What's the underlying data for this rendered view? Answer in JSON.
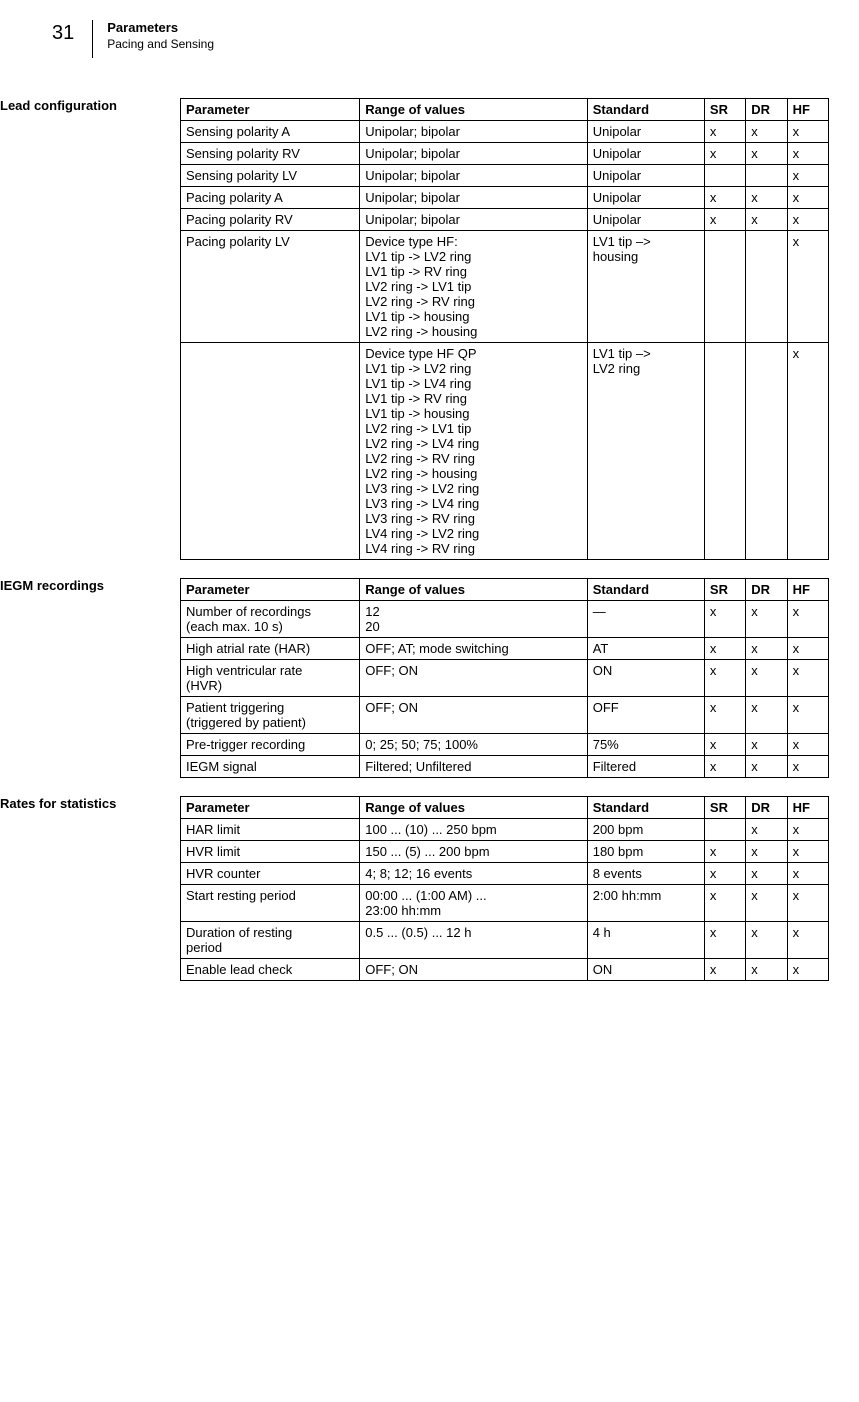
{
  "page": {
    "number": "31",
    "title": "Parameters",
    "subtitle": "Pacing and Sensing"
  },
  "headers": {
    "parameter": "Parameter",
    "range": "Range of values",
    "standard": "Standard",
    "sr": "SR",
    "dr": "DR",
    "hf": "HF"
  },
  "sections": {
    "lead": {
      "label": "Lead configuration",
      "rows": [
        {
          "param": "Sensing polarity A",
          "range": "Unipolar; bipolar",
          "std": "Unipolar",
          "sr": "x",
          "dr": "x",
          "hf": "x"
        },
        {
          "param": "Sensing polarity RV",
          "range": "Unipolar; bipolar",
          "std": "Unipolar",
          "sr": "x",
          "dr": "x",
          "hf": "x"
        },
        {
          "param": "Sensing polarity LV",
          "range": "Unipolar; bipolar",
          "std": "Unipolar",
          "sr": "",
          "dr": "",
          "hf": "x"
        },
        {
          "param": "Pacing polarity A",
          "range": "Unipolar; bipolar",
          "std": "Unipolar",
          "sr": "x",
          "dr": "x",
          "hf": "x"
        },
        {
          "param": "Pacing polarity RV",
          "range": "Unipolar; bipolar",
          "std": "Unipolar",
          "sr": "x",
          "dr": "x",
          "hf": "x"
        },
        {
          "param": "Pacing polarity LV",
          "range_lines": [
            "Device type HF:",
            "LV1 tip -> LV2 ring",
            "LV1 tip -> RV ring",
            "LV2 ring -> LV1 tip",
            "LV2 ring -> RV ring",
            "LV1 tip -> housing",
            "LV2 ring -> housing"
          ],
          "std_lines": [
            "LV1 tip –>",
            "housing"
          ],
          "sr": "",
          "dr": "",
          "hf": "x"
        },
        {
          "param": "",
          "range_lines": [
            "Device type HF QP",
            "LV1 tip -> LV2 ring",
            "LV1 tip -> LV4 ring",
            "LV1 tip -> RV ring",
            "LV1 tip -> housing",
            "LV2 ring -> LV1 tip",
            "LV2 ring -> LV4 ring",
            "LV2 ring -> RV ring",
            "LV2 ring -> housing",
            "LV3 ring -> LV2 ring",
            "LV3 ring -> LV4 ring",
            "LV3 ring -> RV ring",
            "LV4 ring -> LV2 ring",
            "LV4 ring -> RV ring"
          ],
          "std_lines": [
            "LV1 tip –>",
            "LV2 ring"
          ],
          "sr": "",
          "dr": "",
          "hf": "x"
        }
      ]
    },
    "iegm": {
      "label": "IEGM recordings",
      "rows": [
        {
          "param_lines": [
            "Number of recordings",
            "(each max. 10 s)"
          ],
          "range_lines": [
            "12",
            "20"
          ],
          "std": "—",
          "sr": "x",
          "dr": "x",
          "hf": "x"
        },
        {
          "param": "High atrial rate (HAR)",
          "range": "OFF; AT; mode switching",
          "std": "AT",
          "sr": "x",
          "dr": "x",
          "hf": "x"
        },
        {
          "param_lines": [
            "High ventricular rate",
            "(HVR)"
          ],
          "range": "OFF; ON",
          "std": "ON",
          "sr": "x",
          "dr": "x",
          "hf": "x"
        },
        {
          "param_lines": [
            "Patient triggering",
            "(triggered by patient)"
          ],
          "range": "OFF; ON",
          "std": "OFF",
          "sr": "x",
          "dr": "x",
          "hf": "x"
        },
        {
          "param": "Pre-trigger recording",
          "range": "0; 25; 50; 75; 100%",
          "std": "75%",
          "sr": "x",
          "dr": "x",
          "hf": "x"
        },
        {
          "param": "IEGM signal",
          "range": "Filtered; Unfiltered",
          "std": "Filtered",
          "sr": "x",
          "dr": "x",
          "hf": "x"
        }
      ]
    },
    "rates": {
      "label": "Rates for statistics",
      "rows": [
        {
          "param": "HAR limit",
          "range": "100 ... (10) ... 250 bpm",
          "std": "200 bpm",
          "sr": "",
          "dr": "x",
          "hf": "x"
        },
        {
          "param": "HVR limit",
          "range": "150 ... (5) ... 200 bpm",
          "std": "180 bpm",
          "sr": "x",
          "dr": "x",
          "hf": "x"
        },
        {
          "param": "HVR counter",
          "range": "4; 8; 12; 16 events",
          "std": "8 events",
          "sr": "x",
          "dr": "x",
          "hf": "x"
        },
        {
          "param": "Start resting period",
          "range_lines": [
            "00:00 ... (1:00 AM) ...",
            "23:00 hh:mm"
          ],
          "std": "2:00 hh:mm",
          "sr": "x",
          "dr": "x",
          "hf": "x"
        },
        {
          "param_lines": [
            "Duration of resting",
            "period"
          ],
          "range": "0.5 ... (0.5) ... 12 h",
          "std": "4 h",
          "sr": "x",
          "dr": "x",
          "hf": "x"
        },
        {
          "param": "Enable lead check",
          "range": "OFF; ON",
          "std": "ON",
          "sr": "x",
          "dr": "x",
          "hf": "x"
        }
      ]
    }
  }
}
